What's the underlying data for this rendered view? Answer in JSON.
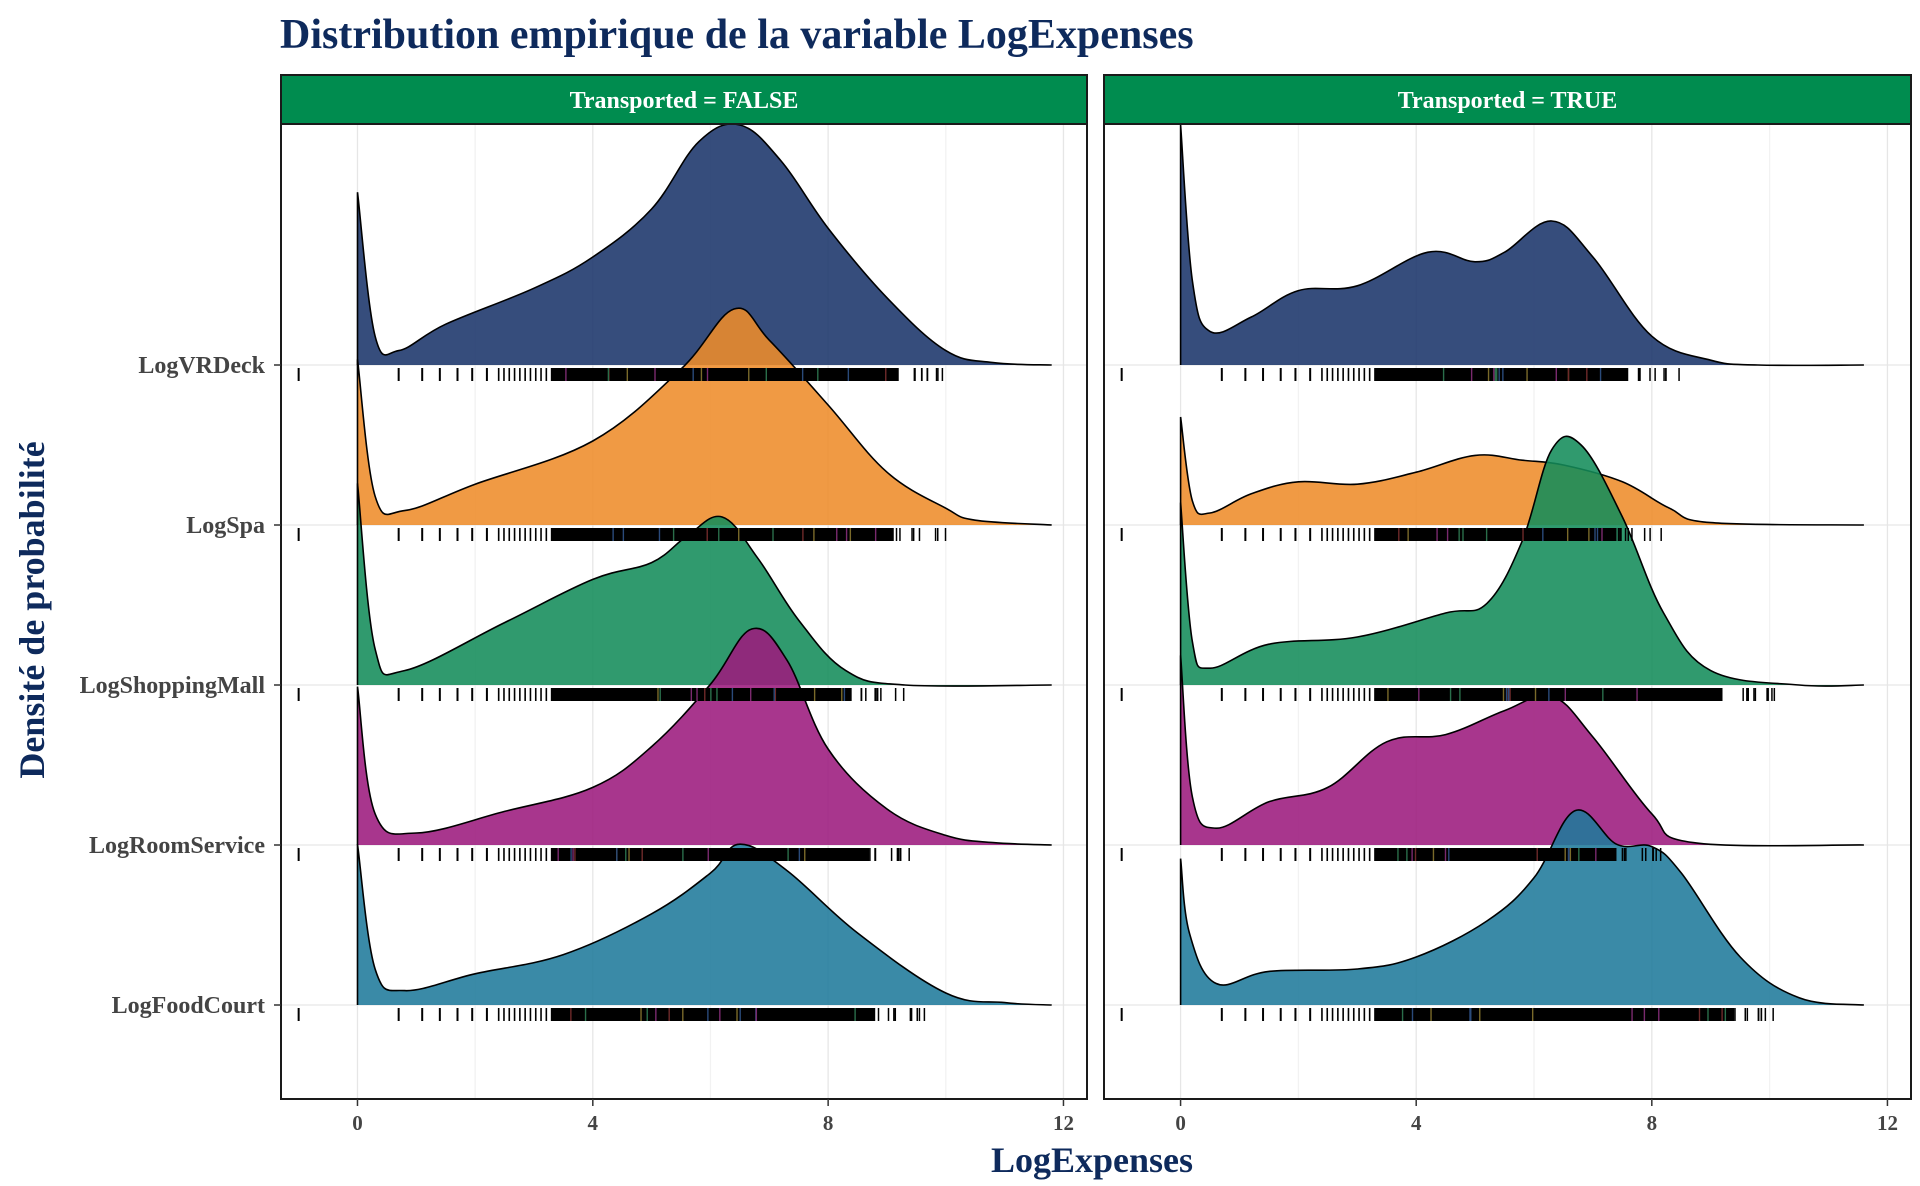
{
  "chart_data": {
    "type": "ridgeline",
    "title": "Distribution empirique de la variable LogExpenses",
    "xlabel": "LogExpenses",
    "ylabel": "Densité de probabilité",
    "xlim": [
      -1.3,
      12.4
    ],
    "x_ticks": [
      "0",
      "4",
      "8",
      "12"
    ],
    "x_tick_values": [
      0,
      4,
      8,
      12
    ],
    "grid": true,
    "rug": true,
    "categories": [
      "LogFoodCourt",
      "LogRoomService",
      "LogShoppingMall",
      "LogSpa",
      "LogVRDeck"
    ],
    "colors": {
      "LogFoodCourt": "#1f7a9b",
      "LogRoomService": "#9c1a7d",
      "LogShoppingMall": "#138c5a",
      "LogSpa": "#ee8c2a",
      "LogVRDeck": "#1a346a",
      "strip": "#008c4f",
      "text": "#0e2a5c"
    },
    "facets": [
      {
        "label": "Transported = FALSE",
        "series": [
          {
            "name": "LogVRDeck",
            "x": [
              0,
              0.3,
              0.7,
              1.5,
              3,
              4,
              5,
              5.8,
              6.5,
              7.2,
              8,
              9,
              10,
              10.8,
              11.8
            ],
            "density": [
              0.72,
              0.12,
              0.06,
              0.17,
              0.32,
              0.45,
              0.65,
              0.93,
              1.0,
              0.85,
              0.57,
              0.28,
              0.06,
              0.01,
              0.0
            ]
          },
          {
            "name": "LogSpa",
            "x": [
              0,
              0.3,
              0.8,
              2,
              4,
              5.5,
              6.4,
              7,
              8,
              9,
              10,
              10.5,
              11.8
            ],
            "density": [
              0.69,
              0.12,
              0.06,
              0.17,
              0.35,
              0.65,
              0.9,
              0.77,
              0.5,
              0.22,
              0.07,
              0.02,
              0.0
            ]
          },
          {
            "name": "LogShoppingMall",
            "x": [
              0,
              0.3,
              0.8,
              2.5,
              4,
              5,
              5.6,
              6.2,
              6.8,
              7.5,
              8.3,
              9.3,
              11.8
            ],
            "density": [
              0.84,
              0.15,
              0.06,
              0.26,
              0.44,
              0.51,
              0.62,
              0.7,
              0.53,
              0.27,
              0.06,
              0.0,
              0.0
            ]
          },
          {
            "name": "LogRoomService",
            "x": [
              0,
              0.3,
              1,
              2.5,
              4,
              5,
              6,
              6.7,
              7.3,
              8,
              9,
              10,
              10.8,
              11.8
            ],
            "density": [
              0.66,
              0.13,
              0.05,
              0.14,
              0.24,
              0.41,
              0.67,
              0.9,
              0.77,
              0.4,
              0.15,
              0.04,
              0.01,
              0.0
            ]
          },
          {
            "name": "LogFoodCourt",
            "x": [
              0,
              0.3,
              0.8,
              2,
              3.5,
              5,
              6,
              6.5,
              7.3,
              8.5,
              10,
              11,
              11.8
            ],
            "density": [
              0.67,
              0.15,
              0.06,
              0.13,
              0.21,
              0.38,
              0.55,
              0.67,
              0.56,
              0.3,
              0.05,
              0.01,
              0.0
            ]
          }
        ],
        "rug_range": [
          {
            "name": "LogVRDeck",
            "min": -1,
            "max": 10.1
          },
          {
            "name": "LogSpa",
            "min": -1,
            "max": 10.0
          },
          {
            "name": "LogShoppingMall",
            "min": -1,
            "max": 9.3
          },
          {
            "name": "LogRoomService",
            "min": -1,
            "max": 9.6
          },
          {
            "name": "LogFoodCourt",
            "min": -1,
            "max": 9.7
          }
        ]
      },
      {
        "label": "Transported = TRUE",
        "series": [
          {
            "name": "LogVRDeck",
            "x": [
              0,
              0.2,
              0.5,
              1.2,
              2,
              3,
              4.2,
              5,
              5.5,
              6.3,
              7,
              8,
              9,
              9.8,
              11.6
            ],
            "density": [
              1.0,
              0.35,
              0.14,
              0.2,
              0.31,
              0.33,
              0.47,
              0.43,
              0.47,
              0.6,
              0.45,
              0.12,
              0.02,
              0.0,
              0.0
            ]
          },
          {
            "name": "LogSpa",
            "x": [
              0,
              0.2,
              0.5,
              1.2,
              2,
              3,
              4,
              5,
              5.8,
              6.5,
              7.5,
              8.3,
              9,
              11.6
            ],
            "density": [
              0.45,
              0.1,
              0.05,
              0.13,
              0.18,
              0.17,
              0.22,
              0.29,
              0.27,
              0.25,
              0.18,
              0.07,
              0.01,
              0.0
            ]
          },
          {
            "name": "LogShoppingMall",
            "x": [
              0,
              0.2,
              0.5,
              1.5,
              3,
              4.5,
              5.2,
              5.8,
              6.3,
              6.8,
              7.5,
              8.2,
              9,
              10.5,
              11.6
            ],
            "density": [
              0.76,
              0.18,
              0.07,
              0.17,
              0.2,
              0.3,
              0.34,
              0.6,
              0.98,
              1.0,
              0.7,
              0.3,
              0.06,
              0.0,
              0.0
            ]
          },
          {
            "name": "LogRoomService",
            "x": [
              0,
              0.2,
              0.6,
              1.5,
              2.5,
              3.5,
              4.5,
              5.5,
              6.3,
              7,
              8,
              8.7,
              11.6
            ],
            "density": [
              0.79,
              0.2,
              0.07,
              0.18,
              0.24,
              0.43,
              0.46,
              0.56,
              0.62,
              0.45,
              0.13,
              0.01,
              0.0
            ]
          },
          {
            "name": "LogFoodCourt",
            "x": [
              0,
              0.15,
              0.6,
              1.5,
              3,
              4,
              5.2,
              6,
              6.7,
              7.4,
              8,
              8.5,
              9.5,
              10.5,
              11.6
            ],
            "density": [
              0.61,
              0.3,
              0.09,
              0.14,
              0.15,
              0.2,
              0.35,
              0.53,
              0.81,
              0.67,
              0.66,
              0.55,
              0.2,
              0.03,
              0.0
            ]
          }
        ],
        "rug_range": [
          {
            "name": "LogVRDeck",
            "min": -1,
            "max": 8.5
          },
          {
            "name": "LogSpa",
            "min": -1,
            "max": 8.3
          },
          {
            "name": "LogShoppingMall",
            "min": -1,
            "max": 10.1
          },
          {
            "name": "LogRoomService",
            "min": -1,
            "max": 8.3
          },
          {
            "name": "LogFoodCourt",
            "min": -1,
            "max": 10.3
          }
        ]
      }
    ]
  }
}
